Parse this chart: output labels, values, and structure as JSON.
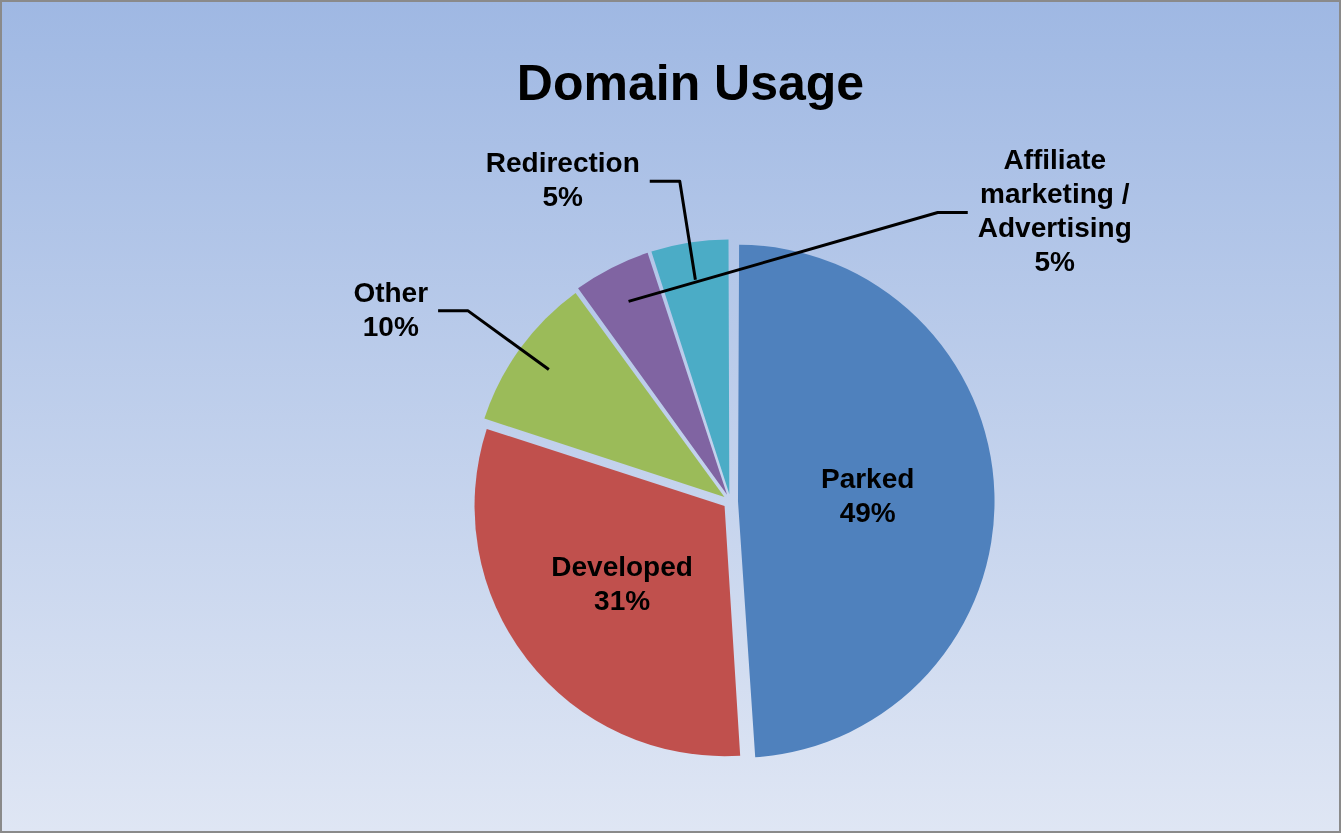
{
  "chart_data": {
    "type": "pie",
    "title": "Domain Usage",
    "categories": [
      "Parked",
      "Developed",
      "Other",
      "Affiliate marketing / Advertising",
      "Redirection"
    ],
    "values": [
      49,
      31,
      10,
      5,
      5
    ],
    "value_labels": [
      "49%",
      "31%",
      "10%",
      "5%",
      "5%"
    ],
    "colors": [
      "#4f81bd",
      "#c0504d",
      "#9bbb59",
      "#8064a2",
      "#4bacc6"
    ],
    "legend": false
  }
}
